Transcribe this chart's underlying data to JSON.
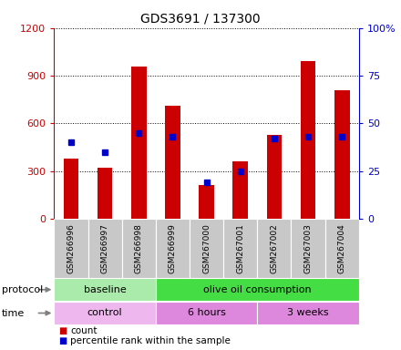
{
  "title": "GDS3691 / 137300",
  "samples": [
    "GSM266996",
    "GSM266997",
    "GSM266998",
    "GSM266999",
    "GSM267000",
    "GSM267001",
    "GSM267002",
    "GSM267003",
    "GSM267004"
  ],
  "counts": [
    380,
    320,
    960,
    710,
    215,
    360,
    530,
    990,
    810
  ],
  "percentile_ranks": [
    40,
    35,
    45,
    43,
    19,
    25,
    42,
    43,
    43
  ],
  "ylim_left": [
    0,
    1200
  ],
  "ylim_right": [
    0,
    100
  ],
  "yticks_left": [
    0,
    300,
    600,
    900,
    1200
  ],
  "yticks_right": [
    0,
    25,
    50,
    75,
    100
  ],
  "bar_color": "#cc0000",
  "dot_color": "#0000cc",
  "protocol_groups": [
    {
      "label": "baseline",
      "start": 0,
      "end": 3,
      "color": "#aaeaaa"
    },
    {
      "label": "olive oil consumption",
      "start": 3,
      "end": 9,
      "color": "#44dd44"
    }
  ],
  "time_groups": [
    {
      "label": "control",
      "start": 0,
      "end": 3,
      "color": "#eeb8ee"
    },
    {
      "label": "6 hours",
      "start": 3,
      "end": 6,
      "color": "#dd88dd"
    },
    {
      "label": "3 weeks",
      "start": 6,
      "end": 9,
      "color": "#dd88dd"
    }
  ],
  "left_axis_color": "#cc0000",
  "right_axis_color": "#0000cc",
  "background_color": "#ffffff"
}
